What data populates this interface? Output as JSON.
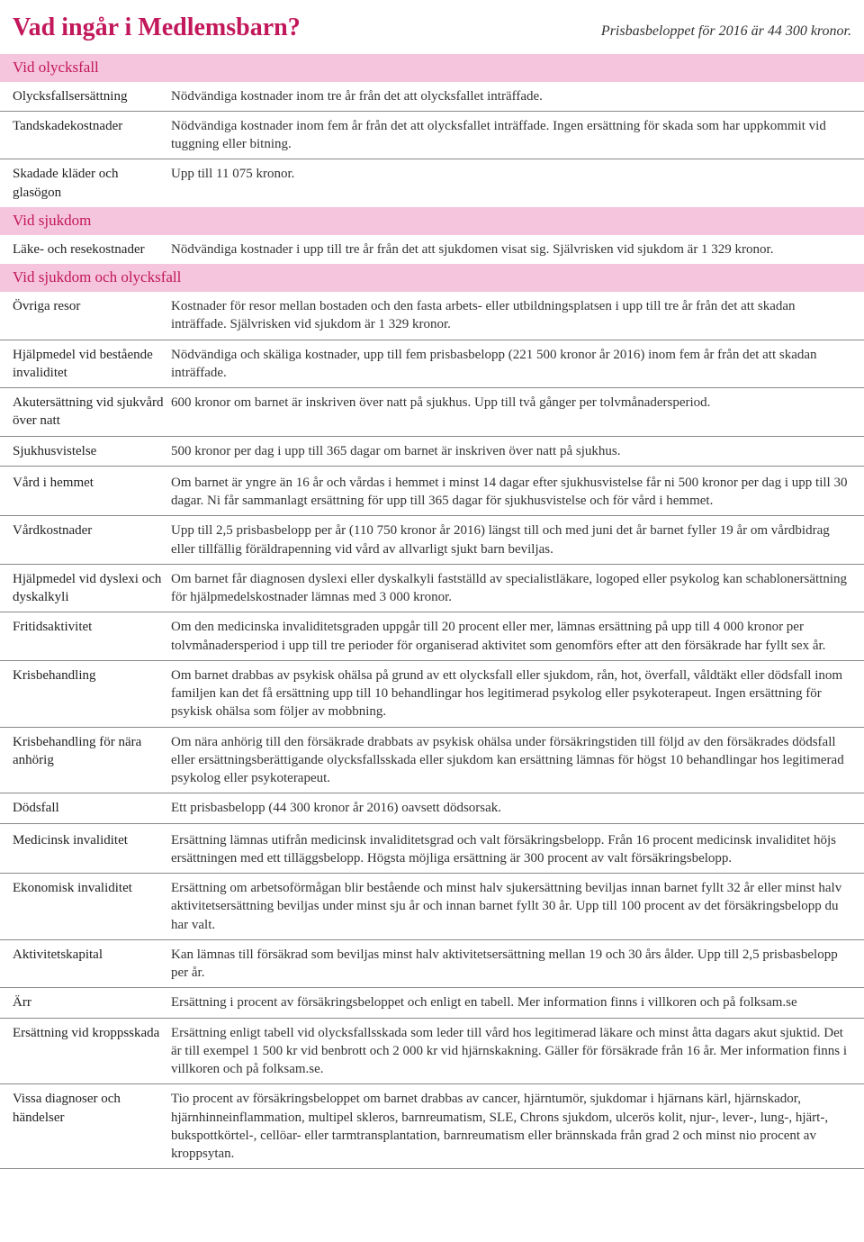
{
  "colors": {
    "accent": "#c2185b",
    "section_bg": "#f5c4dd",
    "rule": "#888888",
    "text": "#333333"
  },
  "header": {
    "title": "Vad ingår i Medlemsbarn?",
    "subtext": "Prisbasbeloppet för 2016 är 44 300 kronor."
  },
  "sections": {
    "s1": {
      "title": "Vid olycksfall"
    },
    "s2": {
      "title": "Vid sjukdom"
    },
    "s3": {
      "title": "Vid sjukdom och olycksfall"
    }
  },
  "rows": {
    "r1": {
      "label": "Olycksfalls­ersättning",
      "desc": "Nödvändiga kostnader inom tre år från det att olycksfallet inträffade."
    },
    "r2": {
      "label": "Tandskade­kostnader",
      "desc": "Nödvändiga kostnader inom fem år från det att olycksfallet inträffade. Ingen ersättning för skada som har uppkommit vid tuggning eller bitning."
    },
    "r3": {
      "label": "Skadade kläder och glasögon",
      "desc": "Upp till 11 075 kronor."
    },
    "r4": {
      "label": "Läke- och resekostnader",
      "desc": "Nödvändiga kostnader i upp till tre år från det att sjukdomen visat sig. Självrisken vid sjukdom är 1 329 kronor."
    },
    "r5": {
      "label": "Övriga resor",
      "desc": "Kostnader för resor mellan bostaden och den fasta arbets- eller utbildningsplatsen i upp till tre år från det att skadan inträffade. Självrisken vid sjukdom är 1 329 kronor."
    },
    "r6": {
      "label": "Hjälpmedel vid be­stående invaliditet",
      "desc": "Nödvändiga och skäliga kostnader, upp till fem prisbasbelopp (221 500 kronor år 2016) inom fem år från det att skadan inträffade."
    },
    "r7": {
      "label": "Akutersättning vid sjukvård över natt",
      "desc": "600 kronor om barnet är inskriven över natt på sjukhus. Upp till två gånger per tolvmånadersperiod."
    },
    "r8": {
      "label": "Sjukhusvistelse",
      "desc": "500 kronor per dag i upp till 365 dagar om barnet är inskriven över natt på sjukhus."
    },
    "r9": {
      "label": "Vård i hemmet",
      "desc": "Om barnet är yngre än 16 år och vårdas i hemmet i minst 14 dagar efter sjukhusvistelse får ni 500 kronor per dag i upp till 30 dagar. Ni får sammanlagt ersättning för upp till 365 dagar för sjukhusvistelse och för vård i hemmet."
    },
    "r10": {
      "label": "Vårdkostnader",
      "desc": "Upp till 2,5 prisbasbelopp per år (110 750 kronor år 2016) längst till och med juni det år barnet fyller 19 år om vårdbidrag eller tillfällig föräldrapenning vid vård av allvarligt sjukt barn beviljas."
    },
    "r11": {
      "label": "Hjälpmedel vid dyslexi och dyskalkyli",
      "desc": "Om barnet får diagnosen dyslexi eller dyskalkyli fastställd av specialistläkare, logoped eller psykolog kan schablonersättning för hjälpmedelskostnader lämnas med 3 000 kronor."
    },
    "r12": {
      "label": "Fritidsaktivitet",
      "desc": "Om den medicinska invaliditetsgraden uppgår till 20 procent eller mer, lämnas ersättning på upp till 4 000 kronor per tolvmånadersperiod i upp till tre perioder för organiserad aktivitet som ge­nomförs efter att den försäkrade har fyllt sex år."
    },
    "r13": {
      "label": "Krisbehandling",
      "desc": "Om barnet drabbas av psykisk ohälsa på grund av ett olycksfall eller sjukdom, rån, hot, över­fall, våldtäkt eller dödsfall inom familjen kan det få ersättning upp till 10 behandlingar hos legitimerad psykolog eller psykoterapeut. Ingen ersättning för psykisk ohälsa som följer av mobbning."
    },
    "r14": {
      "label": "Krisbehandling för nära anhörig",
      "desc": "Om nära anhörig till den försäkrade drabbats av psykisk ohälsa under försäkringstiden till följd av den försäkrades dödsfall eller ersättningsberättigande olycksfallsskada eller sjukdom kan ersättning lämnas för högst 10 behandlingar hos legitimerad psykolog eller psykoterapeut."
    },
    "r15": {
      "label": "Dödsfall",
      "desc": "Ett prisbasbelopp (44 300 kronor år 2016) oavsett dödsorsak."
    },
    "r16": {
      "label": "Medicinsk invaliditet",
      "desc": "Ersättning lämnas utifrån medicinsk invaliditetsgrad och valt försäkringsbelopp. Från 16 procent medicinsk invaliditet höjs ersättningen med ett tilläggsbelopp. Högsta möjliga ersättning är 300 procent av valt försäkringsbelopp."
    },
    "r17": {
      "label": "Ekonomisk invaliditet",
      "desc": "Ersättning om arbetsoförmågan blir bestående och minst halv sjukersättning beviljas innan barnet fyllt 32 år eller minst halv aktivitetsersättning beviljas under minst sju år och innan barnet fyllt 30 år. Upp till 100 procent av det försäkringsbelopp du har valt."
    },
    "r18": {
      "label": "Aktivitetskapital",
      "desc": "Kan lämnas till försäkrad som beviljas minst halv aktivitetsersättning mellan 19 och 30 års ålder. Upp till 2,5 prisbasbelopp per år."
    },
    "r19": {
      "label": "Ärr",
      "desc": "Ersättning i procent av försäkringsbeloppet och enligt en tabell. Mer information finns i villkoren och på folksam.se"
    },
    "r20": {
      "label": "Ersättning vid kroppsskada",
      "desc": "Ersättning enligt tabell vid olycksfallsskada som leder till vård hos legitimerad läkare och minst åtta dagars akut sjuktid. Det är till exempel 1 500 kr vid benbrott och 2 000 kr vid hjärnskak­ning. Gäller för försäkrade från 16 år.  Mer information finns i villkoren och på folksam.se."
    },
    "r21": {
      "label": "Vissa diagnoser och händelser",
      "desc": "Tio procent av försäkringsbeloppet om barnet drabbas av cancer, hjärntumör, sjukdomar i hjär­nans kärl, hjärnskador, hjärnhinneinflammation, multipel skleros, barnreumatism, SLE, Chrons sjukdom, ulcerös kolit, njur-, lever-, lung-, hjärt-, bukspottkörtel-, cellöar- eller tarmtransplanta­tion, barnreumatism eller brännskada från grad 2 och minst nio procent av kroppsytan."
    }
  }
}
